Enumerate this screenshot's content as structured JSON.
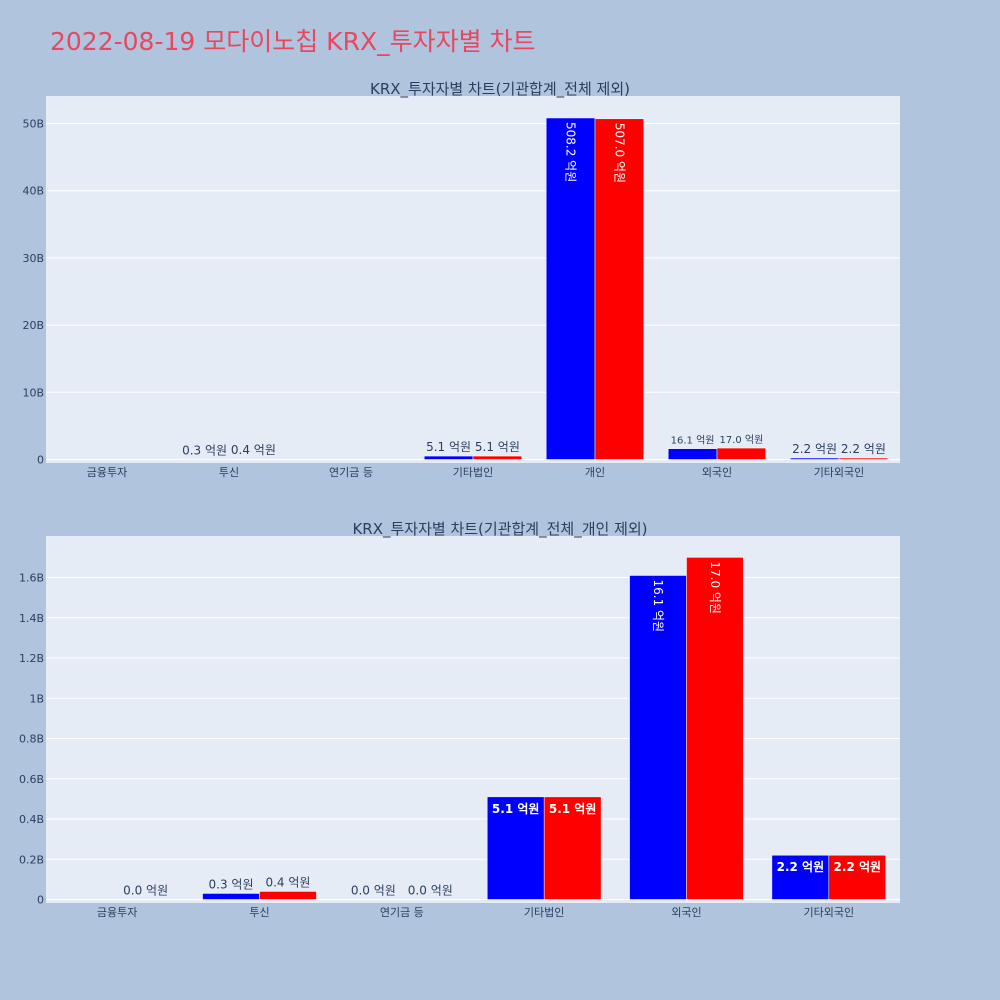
{
  "page": {
    "title": "2022-08-19 모다이노칩 KRX_투자자별 차트"
  },
  "colors": {
    "background": "#b0c4de",
    "plot_bg": "#e5ecf6",
    "title": "#e8475f",
    "buy": "#0000ff",
    "sell": "#ff0000"
  },
  "chart_data": [
    {
      "type": "bar",
      "title": "KRX_투자자별 차트(기관합계_전체 제외)",
      "categories": [
        "금융투자",
        "투신",
        "연기금 등",
        "기타법인",
        "개인",
        "외국인",
        "기타외국인"
      ],
      "ylim": [
        0,
        54000000000
      ],
      "yticks": [
        0,
        10000000000,
        20000000000,
        30000000000,
        40000000000,
        50000000000
      ],
      "ytick_labels": [
        "0",
        "10B",
        "20B",
        "30B",
        "40B",
        "50B"
      ],
      "series": [
        {
          "color": "#0000ff",
          "values": [
            null,
            30000000,
            null,
            510000000,
            50820000000,
            1610000000,
            220000000
          ],
          "labels": [
            "",
            "0.3 억원",
            "",
            "5.1 억원",
            "508.2 억원",
            "16.1 억원",
            "2.2 억원"
          ]
        },
        {
          "color": "#ff0000",
          "values": [
            null,
            40000000,
            null,
            510000000,
            50700000000,
            1700000000,
            220000000
          ],
          "labels": [
            "",
            "0.4 억원",
            "",
            "5.1 억원",
            "507.0 억원",
            "17.0 억원",
            "2.2 억원"
          ]
        }
      ]
    },
    {
      "type": "bar",
      "title": "KRX_투자자별 차트(기관합계_전체_개인 제외)",
      "categories": [
        "금융투자",
        "투신",
        "연기금 등",
        "기타법인",
        "외국인",
        "기타외국인"
      ],
      "ylim": [
        0,
        1800000000
      ],
      "yticks": [
        0,
        200000000,
        400000000,
        600000000,
        800000000,
        1000000000,
        1200000000,
        1400000000,
        1600000000
      ],
      "ytick_labels": [
        "0",
        "0.2B",
        "0.4B",
        "0.6B",
        "0.8B",
        "1B",
        "1.2B",
        "1.4B",
        "1.6B"
      ],
      "series": [
        {
          "color": "#0000ff",
          "values": [
            null,
            30000000,
            0,
            510000000,
            1610000000,
            220000000
          ],
          "labels": [
            "",
            "0.3 억원",
            "0.0 억원",
            "5.1 억원",
            "16.1 억원",
            "2.2 억원"
          ]
        },
        {
          "color": "#ff0000",
          "values": [
            0,
            40000000,
            0,
            510000000,
            1700000000,
            220000000
          ],
          "labels": [
            "0.0 억원",
            "0.4 억원",
            "0.0 억원",
            "5.1 억원",
            "17.0 억원",
            "2.2 억원"
          ]
        }
      ]
    }
  ]
}
